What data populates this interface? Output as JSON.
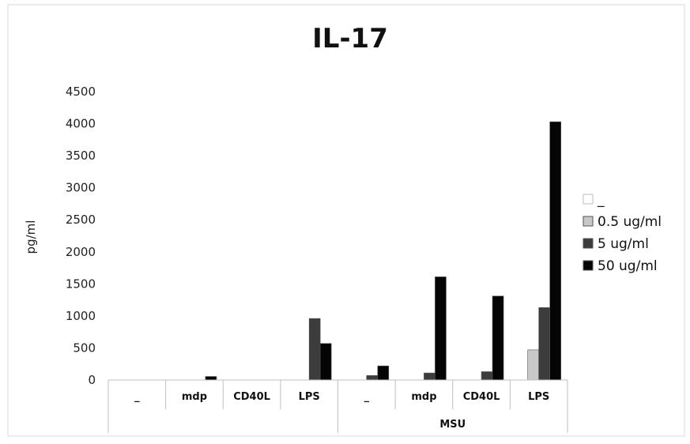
{
  "chart_data": {
    "type": "bar",
    "title": "IL-17",
    "ylabel": "pg/ml",
    "xlabel": "",
    "ylim": [
      0,
      4500
    ],
    "yticks": [
      0,
      500,
      1000,
      1500,
      2000,
      2500,
      3000,
      3500,
      4000,
      4500
    ],
    "grid": false,
    "legend_position": "right",
    "categories": [
      "_",
      "mdp",
      "CD40L",
      "LPS",
      "_",
      "mdp",
      "CD40L",
      "LPS"
    ],
    "group_labels": [
      {
        "label": "MSU",
        "start": 4,
        "end": 7
      }
    ],
    "series": [
      {
        "name": "_",
        "color": "#ffffff",
        "values": [
          0,
          0,
          0,
          0,
          0,
          0,
          0,
          0
        ]
      },
      {
        "name": "0.5 ug/ml",
        "color": "#c8c8c8",
        "values": [
          0,
          0,
          0,
          0,
          0,
          0,
          0,
          470
        ]
      },
      {
        "name": "5 ug/ml",
        "color": "#3c3c3c",
        "values": [
          0,
          0,
          0,
          960,
          70,
          110,
          130,
          1130
        ]
      },
      {
        "name": "50 ug/ml",
        "color": "#050505",
        "values": [
          0,
          55,
          0,
          570,
          220,
          1610,
          1310,
          4030
        ]
      }
    ]
  }
}
